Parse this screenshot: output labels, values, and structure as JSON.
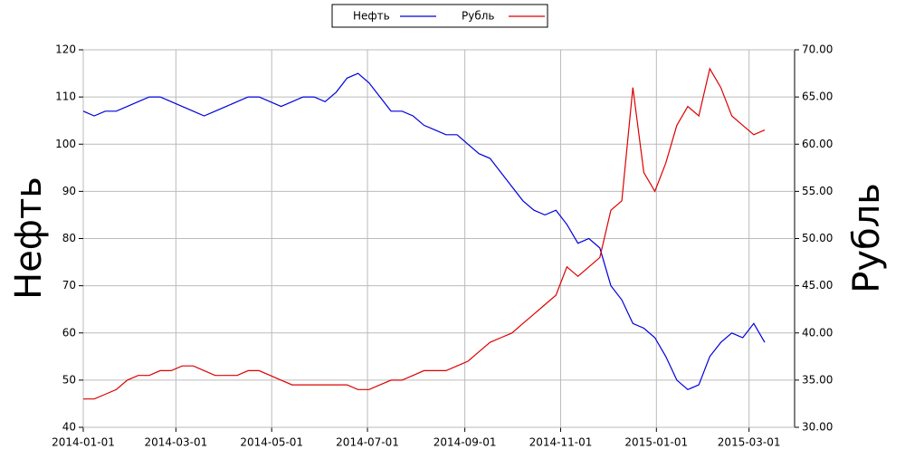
{
  "chart_data": {
    "type": "line",
    "ylabel": "Нефть",
    "y2label": "Рубль",
    "x": [
      "2014-01-01",
      "2014-01-08",
      "2014-01-15",
      "2014-01-22",
      "2014-01-29",
      "2014-02-05",
      "2014-02-12",
      "2014-02-19",
      "2014-02-26",
      "2014-03-05",
      "2014-03-12",
      "2014-03-19",
      "2014-03-26",
      "2014-04-02",
      "2014-04-09",
      "2014-04-16",
      "2014-04-23",
      "2014-04-30",
      "2014-05-07",
      "2014-05-14",
      "2014-05-21",
      "2014-05-28",
      "2014-06-04",
      "2014-06-11",
      "2014-06-18",
      "2014-06-25",
      "2014-07-02",
      "2014-07-09",
      "2014-07-16",
      "2014-07-23",
      "2014-07-30",
      "2014-08-06",
      "2014-08-13",
      "2014-08-20",
      "2014-08-27",
      "2014-09-03",
      "2014-09-10",
      "2014-09-17",
      "2014-09-24",
      "2014-10-01",
      "2014-10-08",
      "2014-10-15",
      "2014-10-22",
      "2014-10-29",
      "2014-11-05",
      "2014-11-12",
      "2014-11-19",
      "2014-11-26",
      "2014-12-03",
      "2014-12-10",
      "2014-12-17",
      "2014-12-24",
      "2014-12-31",
      "2015-01-07",
      "2015-01-14",
      "2015-01-21",
      "2015-01-28",
      "2015-02-04",
      "2015-02-11",
      "2015-02-18",
      "2015-02-25",
      "2015-03-04",
      "2015-03-11"
    ],
    "series": [
      {
        "name": "Нефть",
        "color": "#0000dd",
        "axis": "y",
        "values": [
          107,
          106,
          107,
          107,
          108,
          109,
          110,
          110,
          109,
          108,
          107,
          106,
          107,
          108,
          109,
          110,
          110,
          109,
          108,
          109,
          110,
          110,
          109,
          111,
          114,
          115,
          113,
          110,
          107,
          107,
          106,
          104,
          103,
          102,
          102,
          100,
          98,
          97,
          94,
          91,
          88,
          86,
          85,
          86,
          83,
          79,
          80,
          78,
          70,
          67,
          62,
          61,
          59,
          55,
          50,
          48,
          49,
          55,
          58,
          60,
          59,
          62,
          58
        ]
      },
      {
        "name": "Рубль",
        "color": "#dd0000",
        "axis": "y2",
        "values": [
          33,
          33,
          33.5,
          34,
          35,
          35.5,
          35.5,
          36,
          36,
          36.5,
          36.5,
          36,
          35.5,
          35.5,
          35.5,
          36,
          36,
          35.5,
          35,
          34.5,
          34.5,
          34.5,
          34.5,
          34.5,
          34.5,
          34,
          34,
          34.5,
          35,
          35,
          35.5,
          36,
          36,
          36,
          36.5,
          37,
          38,
          39,
          39.5,
          40,
          41,
          42,
          43,
          44,
          47,
          46,
          47,
          48,
          53,
          54,
          66,
          57,
          55,
          58,
          62,
          64,
          63,
          68,
          66,
          63,
          62,
          61,
          61.5
        ]
      }
    ],
    "xlim": [
      "2014-01-01",
      "2015-03-30"
    ],
    "xticks": [
      "2014-01-01",
      "2014-03-01",
      "2014-05-01",
      "2014-07-01",
      "2014-09-01",
      "2014-11-01",
      "2015-01-01",
      "2015-03-01"
    ],
    "ylim": [
      40,
      120
    ],
    "yticks": [
      40,
      50,
      60,
      70,
      80,
      90,
      100,
      110,
      120
    ],
    "y2lim": [
      30,
      70
    ],
    "y2ticks": [
      {
        "value": 30,
        "label": "30.00"
      },
      {
        "value": 35,
        "label": "35.00"
      },
      {
        "value": 40,
        "label": "40.00"
      },
      {
        "value": 45,
        "label": "45.00"
      },
      {
        "value": 50,
        "label": "50.00"
      },
      {
        "value": 55,
        "label": "55.00"
      },
      {
        "value": 60,
        "label": "60.00"
      },
      {
        "value": 65,
        "label": "65.00"
      },
      {
        "value": 70,
        "label": "70.00"
      }
    ],
    "grid": true
  }
}
